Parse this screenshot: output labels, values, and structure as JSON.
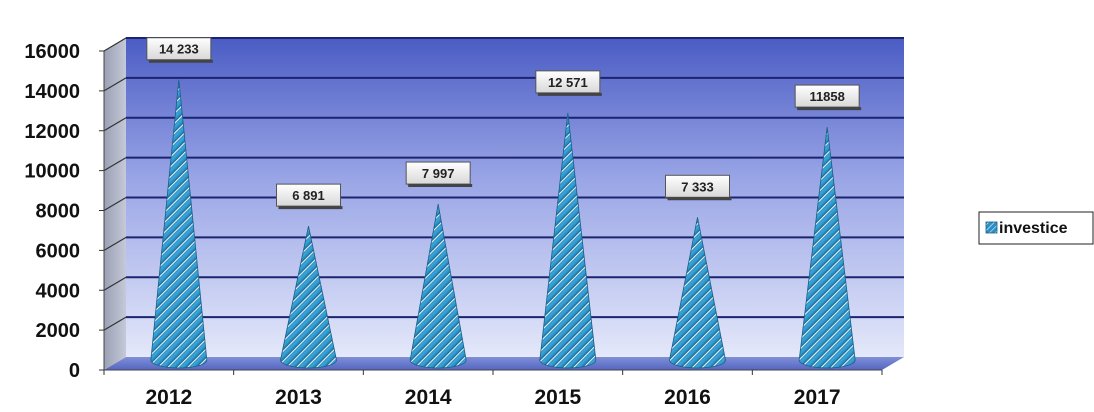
{
  "chart_data": {
    "type": "bar",
    "bar_shape": "cone",
    "categories": [
      "2012",
      "2013",
      "2014",
      "2015",
      "2016",
      "2017"
    ],
    "series": [
      {
        "name": "investice",
        "values": [
          14233,
          6891,
          7997,
          12571,
          7333,
          11858
        ],
        "color": "#2b8fc4"
      }
    ],
    "data_labels": [
      "14 233",
      "6 891",
      "7 997",
      "12 571",
      "7 333",
      "11858"
    ],
    "y_ticks": [
      "0",
      "2000",
      "4000",
      "6000",
      "8000",
      "10000",
      "12000",
      "14000",
      "16000"
    ],
    "ylim": [
      0,
      16000
    ],
    "grid": true,
    "legend_position": "right",
    "title": "",
    "xlabel": "",
    "ylabel": ""
  }
}
